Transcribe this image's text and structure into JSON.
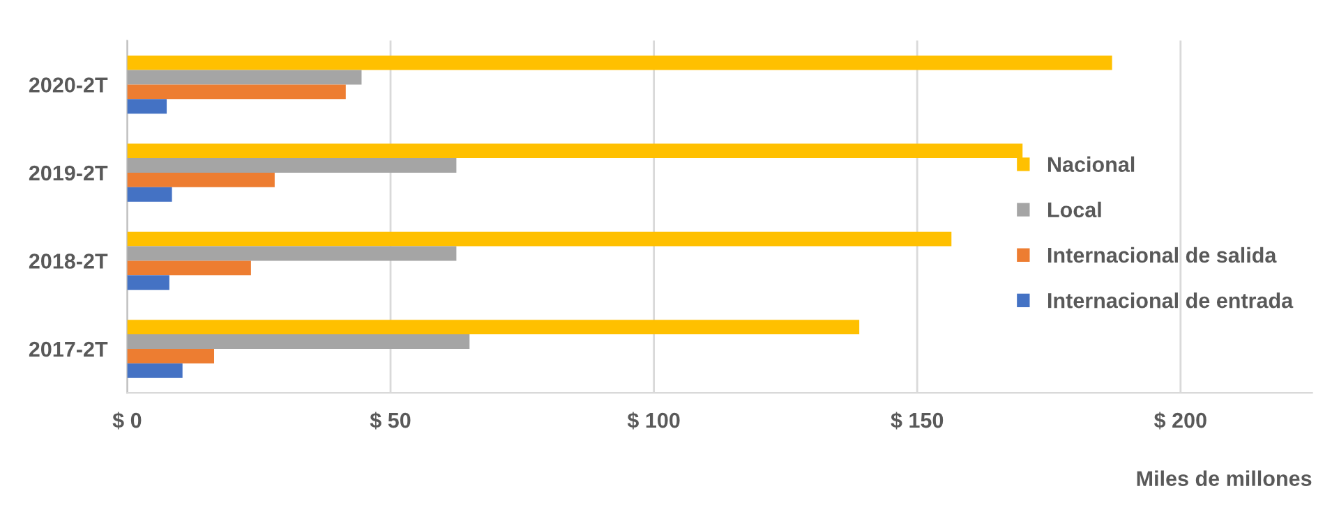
{
  "chart_data": {
    "type": "bar",
    "orientation": "horizontal",
    "categories": [
      "2020-2T",
      "2019-2T",
      "2018-2T",
      "2017-2T"
    ],
    "series": [
      {
        "name": "Nacional",
        "color": "#ffc000",
        "values": [
          187,
          170,
          156.5,
          139
        ]
      },
      {
        "name": "Local",
        "color": "#a5a5a5",
        "values": [
          44.5,
          62.5,
          62.5,
          65
        ]
      },
      {
        "name": "Internacional de salida",
        "color": "#ed7d31",
        "values": [
          41.5,
          28,
          23.5,
          16.5
        ]
      },
      {
        "name": "Internacional de entrada",
        "color": "#4472c4",
        "values": [
          7.5,
          8.5,
          8,
          10.5
        ]
      }
    ],
    "xlim": [
      0,
      225
    ],
    "xticks": [
      {
        "value": 0,
        "label": "$ 0"
      },
      {
        "value": 50,
        "label": "$ 50"
      },
      {
        "value": 100,
        "label": "$ 100"
      },
      {
        "value": 150,
        "label": "$ 150"
      },
      {
        "value": 200,
        "label": "$ 200"
      }
    ],
    "xlabel": "Miles de millones",
    "grid": "x",
    "legend": "right"
  }
}
